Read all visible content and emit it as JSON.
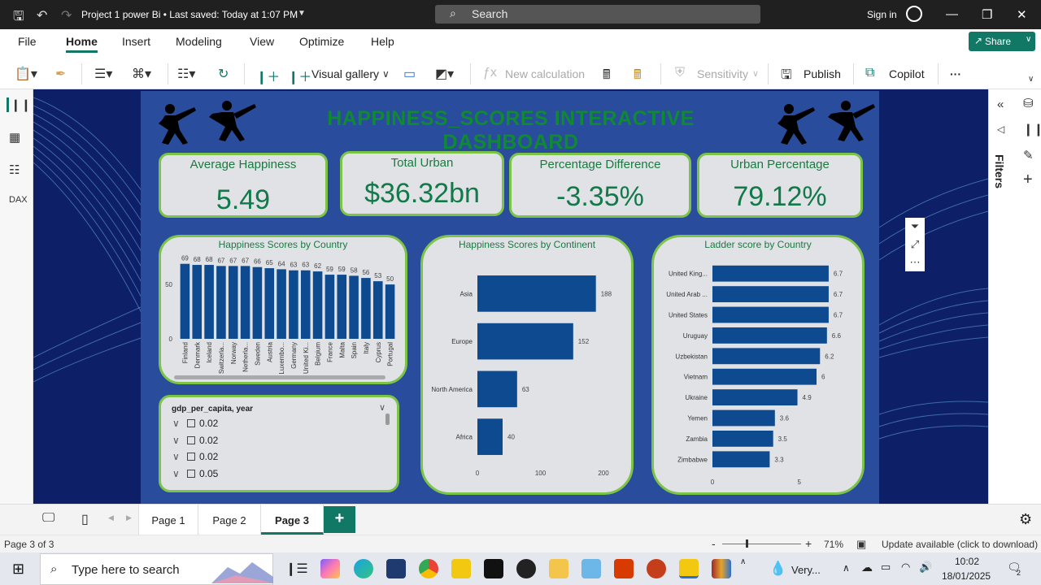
{
  "titlebar": {
    "doc_title": "Project 1 power Bi • Last saved: Today at 1:07 PM",
    "search_placeholder": "Search",
    "sign_in": "Sign in"
  },
  "menu": {
    "items": [
      "File",
      "Home",
      "Insert",
      "Modeling",
      "View",
      "Optimize",
      "Help"
    ],
    "active": "Home",
    "share_label": "Share"
  },
  "toolbar": {
    "visual_gallery": "Visual gallery",
    "new_calculation": "New calculation",
    "sensitivity": "Sensitivity",
    "publish": "Publish",
    "copilot": "Copilot",
    "more": "···"
  },
  "right_pane": {
    "filters_label": "Filters"
  },
  "dashboard": {
    "title": "HAPPINESS_SCORES INTERACTIVE DASHBOARD",
    "kpis": [
      {
        "label": "Average Happiness",
        "value": "5.49"
      },
      {
        "label": "Total Urban",
        "value": "$36.32bn"
      },
      {
        "label": "Percentage Difference",
        "value": "-3.35%"
      },
      {
        "label": "Urban Percentage",
        "value": "79.12%"
      }
    ],
    "slicer": {
      "title": "gdp_per_capita, year",
      "items": [
        "0.02",
        "0.02",
        "0.02",
        "0.05"
      ]
    }
  },
  "chart_data": [
    {
      "type": "bar",
      "title": "Happiness Scores by Country",
      "categories": [
        "Finland",
        "Denmark",
        "Iceland",
        "Switzerla...",
        "Norway",
        "Netherla...",
        "Sweden",
        "Austria",
        "Luxembo...",
        "Germany",
        "United Ki...",
        "Belgium",
        "France",
        "Malta",
        "Spain",
        "Italy",
        "Cyprus",
        "Portugal"
      ],
      "values": [
        69,
        68,
        68,
        67,
        67,
        67,
        66,
        65,
        64,
        63,
        63,
        62,
        59,
        59,
        58,
        56,
        53,
        50
      ],
      "y_ticks": [
        0,
        50
      ],
      "ylim": [
        0,
        80
      ],
      "color": "#0d4a8f"
    },
    {
      "type": "bar",
      "orientation": "horizontal",
      "title": "Happiness Scores by Continent",
      "categories": [
        "Asia",
        "Europe",
        "North America",
        "Africa"
      ],
      "values": [
        188,
        152,
        63,
        40
      ],
      "x_ticks": [
        0,
        100,
        200
      ],
      "xlim": [
        0,
        200
      ],
      "color": "#0d4a8f"
    },
    {
      "type": "bar",
      "orientation": "horizontal",
      "title": "Ladder score by Country",
      "categories": [
        "United King...",
        "United Arab ...",
        "United States",
        "Uruguay",
        "Uzbekistan",
        "Vietnam",
        "Ukraine",
        "Yemen",
        "Zambia",
        "Zimbabwe"
      ],
      "values": [
        6.7,
        6.7,
        6.7,
        6.6,
        6.2,
        6.0,
        4.9,
        3.6,
        3.5,
        3.3
      ],
      "x_ticks": [
        0,
        5
      ],
      "xlim": [
        0,
        7.5
      ],
      "color": "#0d4a8f"
    }
  ],
  "pages": {
    "tabs": [
      "Page 1",
      "Page 2",
      "Page 3"
    ],
    "active": "Page 3",
    "add_label": "+"
  },
  "status": {
    "page_indicator": "Page 3 of 3",
    "zoom": "71%",
    "update": "Update available (click to download)"
  },
  "taskbar": {
    "search_placeholder": "Type here to search",
    "weather": "Very...",
    "time": "10:02",
    "date": "18/01/2025",
    "notifications": "2"
  }
}
